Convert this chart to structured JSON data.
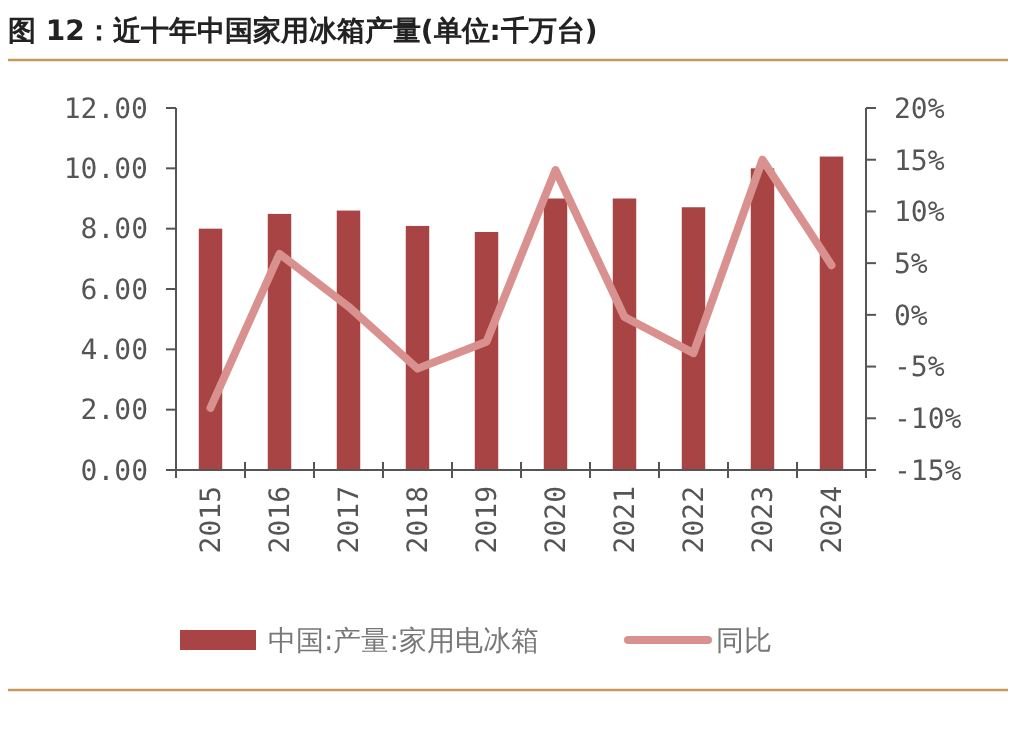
{
  "chart_data": {
    "type": "bar",
    "title": "图 12：近十年中国家用冰箱产量(单位:千万台)",
    "categories": [
      "2015",
      "2016",
      "2017",
      "2018",
      "2019",
      "2020",
      "2021",
      "2022",
      "2023",
      "2024"
    ],
    "series": [
      {
        "name": "中国:产量:家用电冰箱",
        "color": "#a84444",
        "values": [
          8.0,
          8.49,
          8.6,
          8.09,
          7.89,
          9.0,
          9.0,
          8.71,
          10.0,
          10.39
        ]
      },
      {
        "name": "同比",
        "type": "line",
        "axis": "y2",
        "color": "#d99190",
        "values": [
          -9.0,
          5.9,
          0.8,
          -5.2,
          -2.6,
          14.0,
          -0.2,
          -3.7,
          15.0,
          4.8
        ]
      }
    ],
    "ylim": [
      0,
      12
    ],
    "yticks": [
      {
        "value": 0,
        "label": "0.00"
      },
      {
        "value": 2,
        "label": "2.00"
      },
      {
        "value": 4,
        "label": "4.00"
      },
      {
        "value": 6,
        "label": "6.00"
      },
      {
        "value": 8,
        "label": "8.00"
      },
      {
        "value": 10,
        "label": "10.00"
      },
      {
        "value": 12,
        "label": "12.00"
      }
    ],
    "y2lim": [
      -15,
      20
    ],
    "y2ticks": [
      {
        "value": -15,
        "label": "-15%"
      },
      {
        "value": -10,
        "label": "-10%"
      },
      {
        "value": -5,
        "label": "-5%"
      },
      {
        "value": 0,
        "label": "0%"
      },
      {
        "value": 5,
        "label": "5%"
      },
      {
        "value": 10,
        "label": "10%"
      },
      {
        "value": 15,
        "label": "15%"
      },
      {
        "value": 20,
        "label": "20%"
      }
    ],
    "legend": "bottom",
    "grid": false
  }
}
